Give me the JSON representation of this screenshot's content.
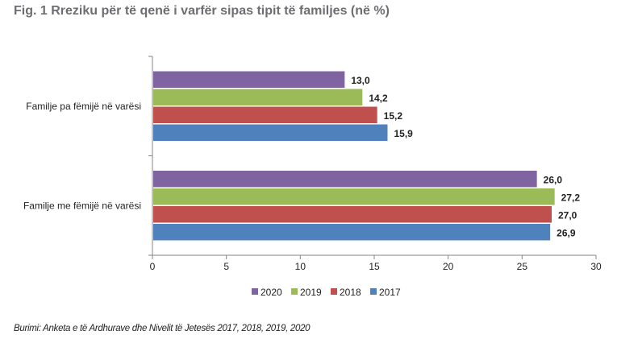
{
  "title": "Fig. 1 Rreziku për të qenë i varfër sipas tipit të familjes (në %)",
  "source": "Burimi: Anketa e të Ardhurave dhe Nivelit të Jetesës 2017, 2018, 2019, 2020",
  "chart_data": {
    "type": "bar",
    "orientation": "horizontal",
    "title": "Fig. 1 Rreziku për të qenë i varfër sipas tipit të familjes (në %)",
    "xlabel": "",
    "ylabel": "",
    "categories": [
      "Familje pa fëmijë në varësi",
      "Familje me fëmijë në varësi"
    ],
    "series": [
      {
        "name": "2020",
        "color": "#8064a2",
        "values": [
          13.0,
          26.0
        ],
        "labels": [
          "13,0",
          "26,0"
        ]
      },
      {
        "name": "2019",
        "color": "#9bbb59",
        "values": [
          14.2,
          27.2
        ],
        "labels": [
          "14,2",
          "27,2"
        ]
      },
      {
        "name": "2018",
        "color": "#c0504d",
        "values": [
          15.2,
          27.0
        ],
        "labels": [
          "15,2",
          "27,0"
        ]
      },
      {
        "name": "2017",
        "color": "#4f81bd",
        "values": [
          15.9,
          26.9
        ],
        "labels": [
          "15,9",
          "26,9"
        ]
      }
    ],
    "xlim": [
      0,
      30
    ],
    "xticks": [
      0,
      5,
      10,
      15,
      20,
      25,
      30
    ],
    "grid": false,
    "legend": "bottom"
  }
}
